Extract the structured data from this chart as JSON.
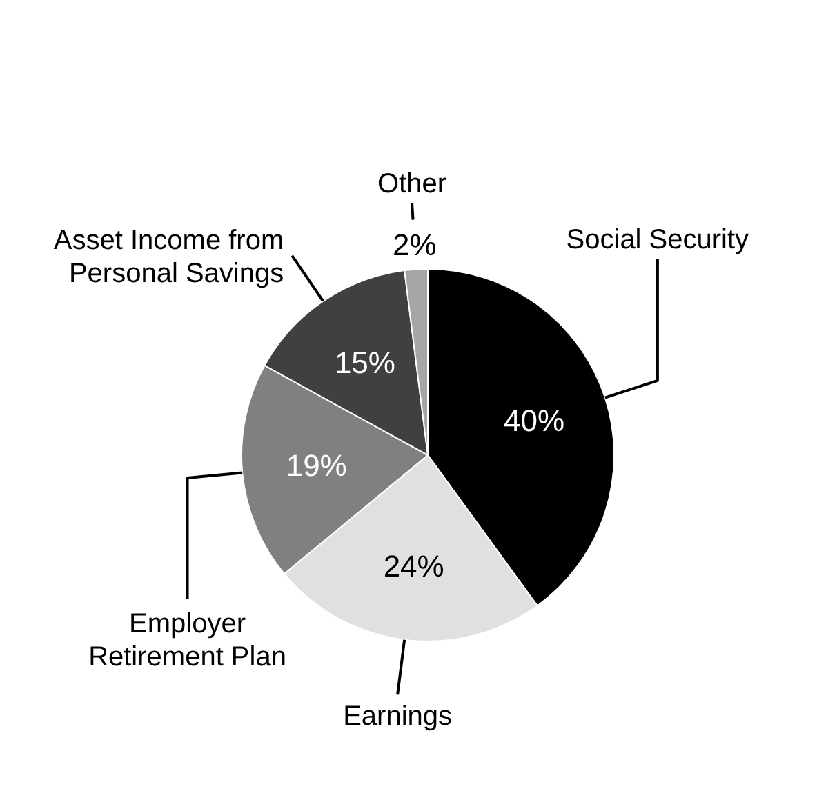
{
  "chart_data": {
    "type": "pie",
    "categories": [
      "Social Security",
      "Earnings",
      "Employer Retirement Plan",
      "Asset Income from Personal Savings",
      "Other"
    ],
    "values": [
      40,
      24,
      19,
      15,
      2
    ],
    "value_labels": [
      "40%",
      "24%",
      "19%",
      "15%",
      "2%"
    ],
    "colors": [
      "#000000",
      "#e0e0e0",
      "#808080",
      "#404040",
      "#a6a6a6"
    ],
    "legend": false
  }
}
